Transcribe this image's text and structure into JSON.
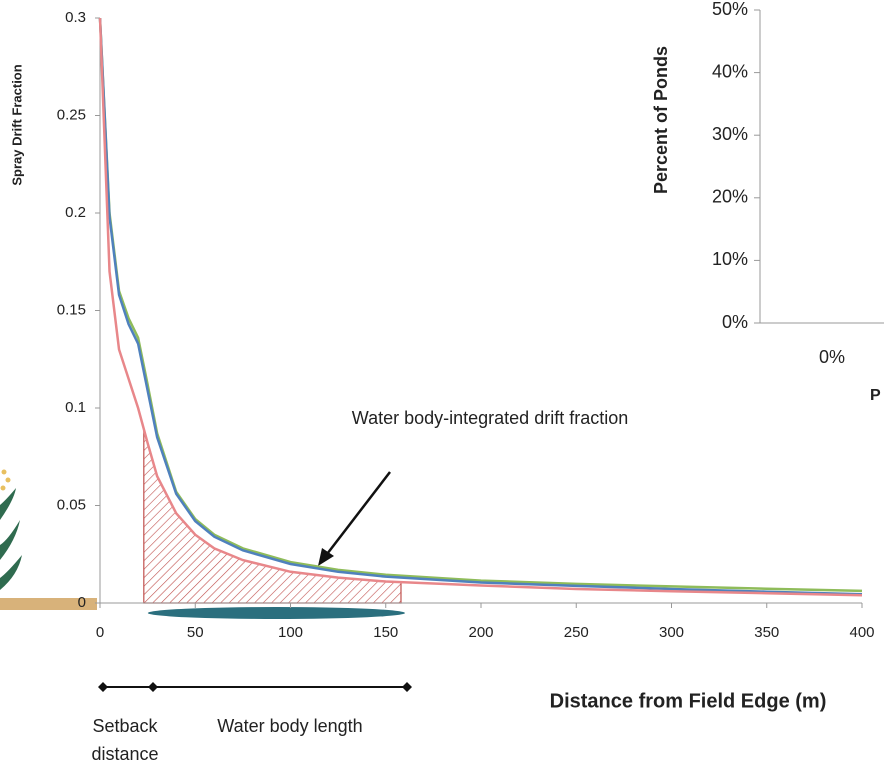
{
  "chart_data": [
    {
      "type": "line",
      "ylabel": "Spray Drift Fraction",
      "xlabel": "Distance from Field Edge (m)",
      "x": [
        0,
        5,
        10,
        15,
        20,
        25,
        30,
        40,
        50,
        60,
        75,
        100,
        125,
        150,
        200,
        250,
        300,
        350,
        400
      ],
      "series": [
        {
          "color": "#8fbc5a",
          "values": [
            0.3,
            0.2,
            0.16,
            0.146,
            0.136,
            0.112,
            0.087,
            0.057,
            0.043,
            0.035,
            0.028,
            0.021,
            0.017,
            0.0145,
            0.0115,
            0.0098,
            0.0085,
            0.0073,
            0.0062
          ]
        },
        {
          "color": "#4f81bd",
          "values": [
            0.3,
            0.198,
            0.158,
            0.143,
            0.133,
            0.109,
            0.085,
            0.056,
            0.042,
            0.034,
            0.027,
            0.02,
            0.016,
            0.0135,
            0.0105,
            0.0088,
            0.0072,
            0.0058,
            0.0045
          ]
        },
        {
          "color": "#e8878a",
          "values": [
            0.3,
            0.17,
            0.13,
            0.115,
            0.1,
            0.082,
            0.065,
            0.046,
            0.035,
            0.028,
            0.022,
            0.016,
            0.013,
            0.011,
            0.009,
            0.0072,
            0.006,
            0.005,
            0.004
          ]
        }
      ],
      "xlim": [
        0,
        400
      ],
      "xticks": [
        0,
        50,
        100,
        150,
        200,
        250,
        300,
        350,
        400
      ],
      "ylim": [
        0,
        0.3
      ],
      "yticks": [
        0,
        0.05,
        0.1,
        0.15,
        0.2,
        0.25,
        0.3
      ],
      "shaded_region": [
        23,
        158
      ],
      "annotation": "Water body-integrated drift fraction",
      "setback_label": "Setback distance",
      "water_body_label": "Water body length"
    },
    {
      "type": "bar",
      "ylabel": "Percent of Ponds",
      "xlabel": "P",
      "categories": [
        "0%"
      ],
      "values": [
        null
      ],
      "ylim": [
        0,
        50
      ],
      "yticks": [
        {
          "value": 0,
          "label": "0%"
        },
        {
          "value": 10,
          "label": "10%"
        },
        {
          "value": 20,
          "label": "20%"
        },
        {
          "value": 30,
          "label": "30%"
        },
        {
          "value": 40,
          "label": "40%"
        },
        {
          "value": 50,
          "label": "50%"
        }
      ]
    }
  ]
}
